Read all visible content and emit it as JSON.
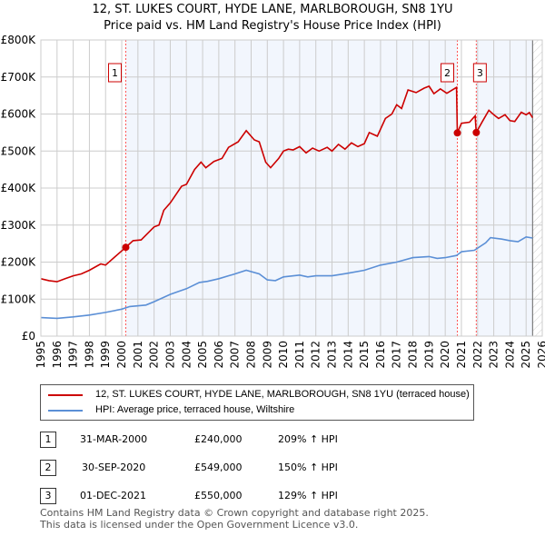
{
  "chart_data": {
    "type": "line",
    "title": "12, ST. LUKES COURT, HYDE LANE, MARLBOROUGH, SN8 1YU",
    "subtitle": "Price paid vs. HM Land Registry's House Price Index (HPI)",
    "xlim": [
      1995,
      2026
    ],
    "ylim": [
      0,
      800000
    ],
    "x_ticks": [
      "1995",
      "1996",
      "1997",
      "1998",
      "1999",
      "2000",
      "2001",
      "2002",
      "2003",
      "2004",
      "2005",
      "2006",
      "2007",
      "2008",
      "2009",
      "2010",
      "2011",
      "2012",
      "2013",
      "2014",
      "2015",
      "2016",
      "2017",
      "2018",
      "2019",
      "2020",
      "2021",
      "2022",
      "2023",
      "2024",
      "2025",
      "2026"
    ],
    "y_ticks": [
      {
        "v": 0,
        "label": "£0"
      },
      {
        "v": 100000,
        "label": "£100K"
      },
      {
        "v": 200000,
        "label": "£200K"
      },
      {
        "v": 300000,
        "label": "£300K"
      },
      {
        "v": 400000,
        "label": "£400K"
      },
      {
        "v": 500000,
        "label": "£500K"
      },
      {
        "v": 600000,
        "label": "£600K"
      },
      {
        "v": 700000,
        "label": "£700K"
      },
      {
        "v": 800000,
        "label": "£800K"
      }
    ],
    "grid": true,
    "series": [
      {
        "name": "12, ST. LUKES COURT, HYDE LANE, MARLBOROUGH, SN8 1YU (terraced house)",
        "color": "#cc0000",
        "points": [
          [
            1995,
            155
          ],
          [
            1995.5,
            150
          ],
          [
            1996,
            147
          ],
          [
            1996.5,
            155
          ],
          [
            1997,
            163
          ],
          [
            1997.5,
            168
          ],
          [
            1998,
            178
          ],
          [
            1998.7,
            195
          ],
          [
            1999,
            192
          ],
          [
            1999.6,
            215
          ],
          [
            2000.25,
            240
          ],
          [
            2000.7,
            258
          ],
          [
            2001.2,
            260
          ],
          [
            2002,
            295
          ],
          [
            2002.3,
            300
          ],
          [
            2002.6,
            340
          ],
          [
            2003,
            360
          ],
          [
            2003.7,
            405
          ],
          [
            2004,
            410
          ],
          [
            2004.5,
            450
          ],
          [
            2004.9,
            470
          ],
          [
            2005.2,
            455
          ],
          [
            2005.7,
            472
          ],
          [
            2006.2,
            480
          ],
          [
            2006.6,
            510
          ],
          [
            2007.2,
            525
          ],
          [
            2007.7,
            555
          ],
          [
            2008.2,
            530
          ],
          [
            2008.5,
            525
          ],
          [
            2008.9,
            470
          ],
          [
            2009.2,
            455
          ],
          [
            2009.7,
            480
          ],
          [
            2010,
            500
          ],
          [
            2010.3,
            505
          ],
          [
            2010.6,
            503
          ],
          [
            2011,
            512
          ],
          [
            2011.4,
            495
          ],
          [
            2011.8,
            508
          ],
          [
            2012.2,
            500
          ],
          [
            2012.7,
            510
          ],
          [
            2013,
            500
          ],
          [
            2013.4,
            518
          ],
          [
            2013.8,
            505
          ],
          [
            2014.2,
            522
          ],
          [
            2014.6,
            512
          ],
          [
            2015,
            520
          ],
          [
            2015.3,
            550
          ],
          [
            2015.8,
            540
          ],
          [
            2016.3,
            588
          ],
          [
            2016.7,
            600
          ],
          [
            2017,
            625
          ],
          [
            2017.3,
            615
          ],
          [
            2017.7,
            665
          ],
          [
            2018.2,
            658
          ],
          [
            2018.7,
            670
          ],
          [
            2019,
            675
          ],
          [
            2019.3,
            655
          ],
          [
            2019.7,
            668
          ],
          [
            2020.1,
            656
          ],
          [
            2020.7,
            672
          ],
          [
            2020.75,
            549
          ],
          [
            2021,
            575
          ],
          [
            2021.5,
            578
          ],
          [
            2021.85,
            595
          ],
          [
            2021.92,
            550
          ],
          [
            2022.3,
            580
          ],
          [
            2022.7,
            610
          ],
          [
            2023,
            598
          ],
          [
            2023.3,
            588
          ],
          [
            2023.7,
            598
          ],
          [
            2024,
            582
          ],
          [
            2024.3,
            580
          ],
          [
            2024.7,
            605
          ],
          [
            2025,
            598
          ],
          [
            2025.2,
            604
          ],
          [
            2025.4,
            590
          ]
        ]
      },
      {
        "name": "HPI: Average price, terraced house, Wiltshire",
        "color": "#5b8fd6",
        "points": [
          [
            1995,
            50
          ],
          [
            1996,
            48
          ],
          [
            1997,
            52
          ],
          [
            1998,
            57
          ],
          [
            1999,
            64
          ],
          [
            2000,
            73
          ],
          [
            2000.5,
            80
          ],
          [
            2001.5,
            84
          ],
          [
            2002,
            93
          ],
          [
            2003,
            113
          ],
          [
            2003.6,
            122
          ],
          [
            2004,
            128
          ],
          [
            2004.8,
            145
          ],
          [
            2005.3,
            148
          ],
          [
            2006,
            155
          ],
          [
            2007,
            168
          ],
          [
            2007.7,
            178
          ],
          [
            2008.5,
            168
          ],
          [
            2009,
            152
          ],
          [
            2009.5,
            150
          ],
          [
            2010,
            160
          ],
          [
            2011,
            165
          ],
          [
            2011.5,
            160
          ],
          [
            2012,
            163
          ],
          [
            2013,
            163
          ],
          [
            2014,
            170
          ],
          [
            2015,
            178
          ],
          [
            2016,
            192
          ],
          [
            2017,
            200
          ],
          [
            2018,
            212
          ],
          [
            2019,
            215
          ],
          [
            2019.5,
            210
          ],
          [
            2020,
            212
          ],
          [
            2020.7,
            218
          ],
          [
            2021,
            228
          ],
          [
            2021.8,
            232
          ],
          [
            2022.5,
            252
          ],
          [
            2022.8,
            266
          ],
          [
            2023.5,
            262
          ],
          [
            2024,
            258
          ],
          [
            2024.5,
            255
          ],
          [
            2025,
            268
          ],
          [
            2025.4,
            265
          ]
        ]
      }
    ],
    "sales": [
      {
        "id": "1",
        "x": 2000.25,
        "y": 240
      },
      {
        "id": "2",
        "x": 2020.75,
        "y": 549
      },
      {
        "id": "3",
        "x": 2021.92,
        "y": 550
      }
    ],
    "y_units": "thousands GBP in points"
  },
  "legend": [
    "12, ST. LUKES COURT, HYDE LANE, MARLBOROUGH, SN8 1YU (terraced house)",
    "HPI: Average price, terraced house, Wiltshire"
  ],
  "table": [
    {
      "num": "1",
      "date": "31-MAR-2000",
      "price": "£240,000",
      "hpi": "209% ↑ HPI"
    },
    {
      "num": "2",
      "date": "30-SEP-2020",
      "price": "£549,000",
      "hpi": "150% ↑ HPI"
    },
    {
      "num": "3",
      "date": "01-DEC-2021",
      "price": "£550,000",
      "hpi": "129% ↑ HPI"
    }
  ],
  "footer": [
    "Contains HM Land Registry data © Crown copyright and database right 2025.",
    "This data is licensed under the Open Government Licence v3.0."
  ]
}
